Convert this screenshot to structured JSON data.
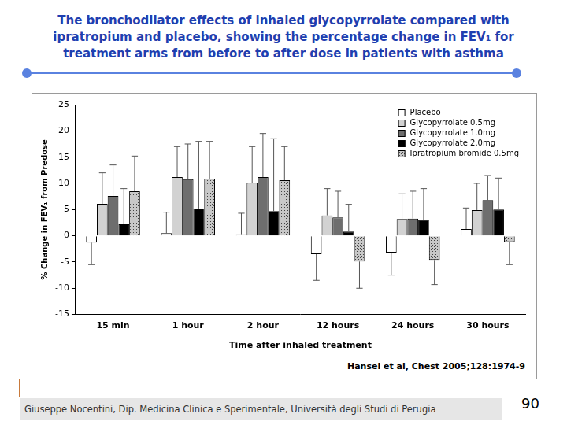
{
  "chart_data": {
    "type": "bar",
    "title": [
      "The bronchodilator effects of inhaled glycopyrrolate compared with",
      "ipratropium and placebo, showing the percentage change in FEV₁ for",
      "treatment arms from before to after dose in patients with asthma"
    ],
    "x_label": "Time after inhaled treatment",
    "y_label": "% Change in FEV₁ from Predose",
    "categories": [
      "15 min",
      "1 hour",
      "2 hour",
      "12 hours",
      "24 hours",
      "30 hours"
    ],
    "series": [
      {
        "name": "Placebo",
        "color": "#ffffff",
        "values": [
          -1.3,
          0.5,
          0.3,
          -3.5,
          -3.2,
          1.3
        ],
        "errors": [
          4.2,
          4.0,
          4.0,
          5.0,
          4.3,
          4.0
        ]
      },
      {
        "name": "Glycopyrrolate 0.5mg",
        "color": "#d2d2d2",
        "values": [
          6.1,
          11.2,
          10.1,
          3.9,
          3.2,
          4.9
        ],
        "errors": [
          5.9,
          5.8,
          6.9,
          5.1,
          4.8,
          5.1
        ]
      },
      {
        "name": "Glycopyrrolate 1.0mg",
        "color": "#6e6e6e",
        "values": [
          7.6,
          10.8,
          11.2,
          3.5,
          3.3,
          6.8
        ],
        "errors": [
          5.9,
          6.7,
          8.3,
          5.0,
          5.2,
          4.7
        ]
      },
      {
        "name": "Glycopyrrolate 2.0mg",
        "color": "#000000",
        "values": [
          2.2,
          5.2,
          4.7,
          0.8,
          3.0,
          5.0
        ],
        "errors": [
          6.8,
          12.8,
          13.8,
          5.2,
          6.0,
          6.0
        ]
      },
      {
        "name": "Ipratropium bromide 0.5mg",
        "color": "#c8c8c8",
        "marker": "dotted",
        "values": [
          8.5,
          10.9,
          10.6,
          -4.9,
          -4.6,
          -1.2
        ],
        "errors": [
          6.7,
          7.1,
          6.4,
          5.1,
          4.7,
          4.3
        ]
      }
    ],
    "ylim": [
      -15,
      25
    ],
    "yticks": [
      -15,
      -10,
      -5,
      0,
      5,
      10,
      15,
      20,
      25
    ],
    "grid": false,
    "legend": "upper right",
    "annotations": [
      "Hansel et al, Chest 2005;128:1974-9"
    ]
  },
  "slide": {
    "footer": "Giuseppe Nocentini, Dip. Medicina Clinica e Sperimentale, Università degli Studi di Perugia",
    "page": 90
  }
}
